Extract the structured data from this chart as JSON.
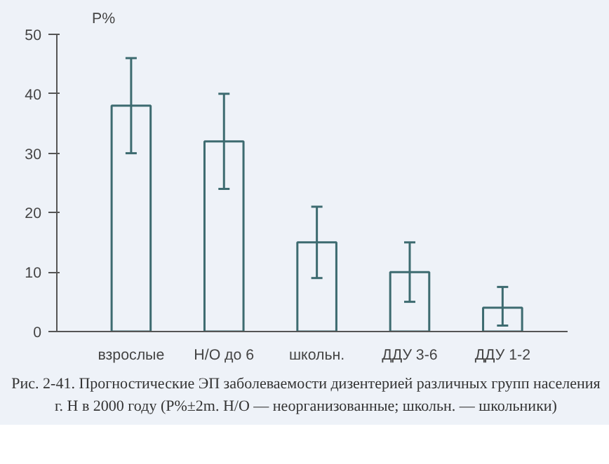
{
  "chart_data": {
    "type": "bar",
    "ylabel": "Р%",
    "categories": [
      "взрослые",
      "Н/О до 6",
      "школьн.",
      "ДДУ 3-6",
      "ДДУ 1-2"
    ],
    "values": [
      38,
      32,
      15,
      10,
      4
    ],
    "errors": [
      [
        30,
        46
      ],
      [
        24,
        40
      ],
      [
        9,
        21
      ],
      [
        5,
        15
      ],
      [
        1,
        7.5
      ]
    ],
    "color": "#3d6b70",
    "ylim": [
      0,
      50
    ],
    "yticks": [
      0,
      10,
      20,
      30,
      40,
      50
    ],
    "grid": false,
    "annotations": [
      "Рис. 2-41. Прогностические ЭП заболеваемости дизентерией различных групп населения г. Н в 2000 году (Р%±2m. Н/О — неорганизованные; школьн. — школьники)"
    ]
  }
}
